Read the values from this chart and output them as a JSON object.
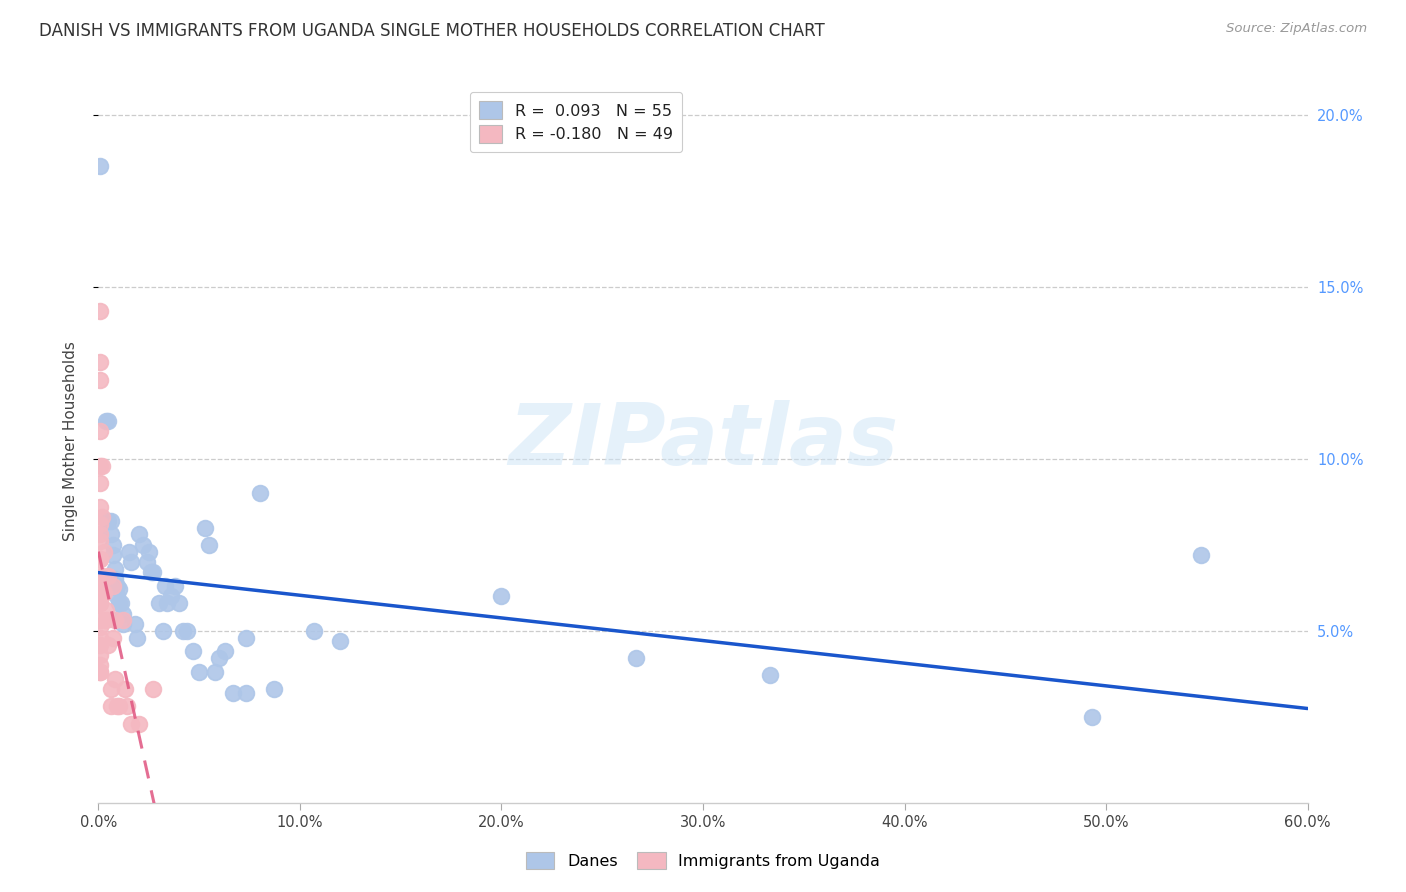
{
  "title": "DANISH VS IMMIGRANTS FROM UGANDA SINGLE MOTHER HOUSEHOLDS CORRELATION CHART",
  "source": "Source: ZipAtlas.com",
  "ylabel": "Single Mother Households",
  "watermark": "ZIPatlas",
  "legend_line1": "R =  0.093   N = 55",
  "legend_line2": "R = -0.180   N = 49",
  "danes_scatter": [
    [
      0.001,
      0.185
    ],
    [
      0.004,
      0.111
    ],
    [
      0.005,
      0.111
    ],
    [
      0.005,
      0.082
    ],
    [
      0.006,
      0.082
    ],
    [
      0.006,
      0.078
    ],
    [
      0.007,
      0.075
    ],
    [
      0.007,
      0.072
    ],
    [
      0.008,
      0.068
    ],
    [
      0.008,
      0.065
    ],
    [
      0.009,
      0.063
    ],
    [
      0.009,
      0.06
    ],
    [
      0.01,
      0.062
    ],
    [
      0.01,
      0.058
    ],
    [
      0.011,
      0.058
    ],
    [
      0.012,
      0.055
    ],
    [
      0.012,
      0.052
    ],
    [
      0.015,
      0.073
    ],
    [
      0.016,
      0.07
    ],
    [
      0.018,
      0.052
    ],
    [
      0.019,
      0.048
    ],
    [
      0.02,
      0.078
    ],
    [
      0.022,
      0.075
    ],
    [
      0.024,
      0.07
    ],
    [
      0.025,
      0.073
    ],
    [
      0.026,
      0.067
    ],
    [
      0.027,
      0.067
    ],
    [
      0.03,
      0.058
    ],
    [
      0.032,
      0.05
    ],
    [
      0.033,
      0.063
    ],
    [
      0.034,
      0.058
    ],
    [
      0.036,
      0.06
    ],
    [
      0.038,
      0.063
    ],
    [
      0.04,
      0.058
    ],
    [
      0.042,
      0.05
    ],
    [
      0.044,
      0.05
    ],
    [
      0.047,
      0.044
    ],
    [
      0.05,
      0.038
    ],
    [
      0.053,
      0.08
    ],
    [
      0.055,
      0.075
    ],
    [
      0.058,
      0.038
    ],
    [
      0.06,
      0.042
    ],
    [
      0.063,
      0.044
    ],
    [
      0.067,
      0.032
    ],
    [
      0.073,
      0.032
    ],
    [
      0.073,
      0.048
    ],
    [
      0.08,
      0.09
    ],
    [
      0.087,
      0.033
    ],
    [
      0.107,
      0.05
    ],
    [
      0.12,
      0.047
    ],
    [
      0.2,
      0.06
    ],
    [
      0.267,
      0.042
    ],
    [
      0.333,
      0.037
    ],
    [
      0.493,
      0.025
    ],
    [
      0.547,
      0.072
    ]
  ],
  "uganda_scatter": [
    [
      0.001,
      0.143
    ],
    [
      0.001,
      0.128
    ],
    [
      0.001,
      0.123
    ],
    [
      0.001,
      0.108
    ],
    [
      0.001,
      0.098
    ],
    [
      0.001,
      0.093
    ],
    [
      0.001,
      0.086
    ],
    [
      0.001,
      0.081
    ],
    [
      0.001,
      0.078
    ],
    [
      0.001,
      0.076
    ],
    [
      0.001,
      0.071
    ],
    [
      0.001,
      0.071
    ],
    [
      0.001,
      0.066
    ],
    [
      0.001,
      0.063
    ],
    [
      0.001,
      0.063
    ],
    [
      0.001,
      0.058
    ],
    [
      0.001,
      0.058
    ],
    [
      0.001,
      0.053
    ],
    [
      0.001,
      0.051
    ],
    [
      0.001,
      0.048
    ],
    [
      0.001,
      0.046
    ],
    [
      0.001,
      0.043
    ],
    [
      0.001,
      0.04
    ],
    [
      0.001,
      0.038
    ],
    [
      0.001,
      0.038
    ],
    [
      0.002,
      0.098
    ],
    [
      0.002,
      0.083
    ],
    [
      0.002,
      0.066
    ],
    [
      0.002,
      0.061
    ],
    [
      0.003,
      0.073
    ],
    [
      0.003,
      0.061
    ],
    [
      0.004,
      0.056
    ],
    [
      0.004,
      0.053
    ],
    [
      0.005,
      0.066
    ],
    [
      0.005,
      0.046
    ],
    [
      0.006,
      0.033
    ],
    [
      0.006,
      0.028
    ],
    [
      0.007,
      0.063
    ],
    [
      0.007,
      0.048
    ],
    [
      0.008,
      0.053
    ],
    [
      0.008,
      0.036
    ],
    [
      0.009,
      0.028
    ],
    [
      0.01,
      0.028
    ],
    [
      0.012,
      0.053
    ],
    [
      0.013,
      0.033
    ],
    [
      0.014,
      0.028
    ],
    [
      0.016,
      0.023
    ],
    [
      0.02,
      0.023
    ],
    [
      0.027,
      0.033
    ]
  ],
  "danes_line_color": "#1a56cc",
  "uganda_line_color": "#e05580",
  "danes_scatter_color": "#aec6e8",
  "uganda_scatter_color": "#f4b8c1",
  "xlim": [
    0,
    0.6
  ],
  "ylim": [
    0,
    0.21
  ],
  "xticks": [
    0.0,
    0.1,
    0.2,
    0.3,
    0.4,
    0.5,
    0.6
  ],
  "xtick_labels": [
    "0.0%",
    "10.0%",
    "20.0%",
    "30.0%",
    "40.0%",
    "50.0%",
    "60.0%"
  ],
  "yticks": [
    0.05,
    0.1,
    0.15,
    0.2
  ],
  "ytick_labels_right": [
    "5.0%",
    "10.0%",
    "15.0%",
    "20.0%"
  ],
  "grid_color": "#cccccc",
  "background_color": "#ffffff",
  "title_fontsize": 12,
  "right_tick_color": "#5599ff",
  "scatter_size": 130
}
